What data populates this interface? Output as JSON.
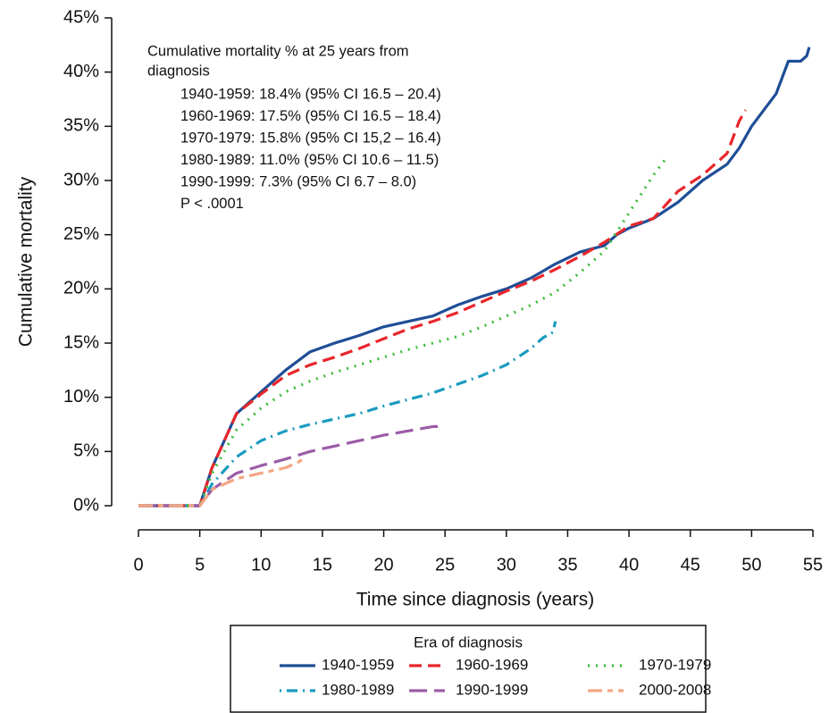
{
  "chart_data": {
    "type": "line",
    "xlabel": "Time since diagnosis (years)",
    "ylabel": "Cumulative mortality",
    "xlim": [
      0,
      55
    ],
    "xticks": [
      0,
      5,
      10,
      15,
      20,
      25,
      30,
      35,
      40,
      45,
      50,
      55
    ],
    "ylim": [
      0,
      45
    ],
    "yticks": [
      {
        "value": 0,
        "label": "0%"
      },
      {
        "value": 5,
        "label": "5%"
      },
      {
        "value": 10,
        "label": "10%"
      },
      {
        "value": 15,
        "label": "15%"
      },
      {
        "value": 20,
        "label": "20%"
      },
      {
        "value": 25,
        "label": "25%"
      },
      {
        "value": 30,
        "label": "30%"
      },
      {
        "value": 35,
        "label": "35%"
      },
      {
        "value": 40,
        "label": "40%"
      },
      {
        "value": 45,
        "label": "45%"
      }
    ],
    "grid": false,
    "annotations": [
      "Cumulative mortality % at 25 years from",
      "diagnosis",
      "1940-1959: 18.4% (95% CI 16.5 – 20.4)",
      "1960-1969: 17.5% (95% CI 16.5 – 18.4)",
      "1970-1979: 15.8% (95% CI 15,2 – 16.4)",
      "1980-1989: 11.0% (95% CI 10.6 – 11.5)",
      "1990-1999:  7.3% (95% CI  6.7 –  8.0)",
      "P < .0001"
    ],
    "legend_title": "Era of diagnosis",
    "legend_position": "bottom",
    "series": [
      {
        "name": "1940-1959",
        "color": "#1f4e96",
        "dash": "solid",
        "x": [
          0,
          5,
          6,
          7,
          8,
          9,
          10,
          12,
          14,
          16,
          18,
          20,
          22,
          24,
          26,
          28,
          30,
          32,
          34,
          36,
          38,
          39,
          40,
          42,
          44,
          46,
          48,
          49,
          50,
          51,
          52,
          53,
          54,
          54.5,
          54.7
        ],
        "values": [
          0,
          0,
          3.5,
          6,
          8.5,
          9.5,
          10.5,
          12.5,
          14.2,
          15,
          15.7,
          16.5,
          17,
          17.5,
          18.5,
          19.3,
          20,
          21,
          22.3,
          23.4,
          24,
          25,
          25.6,
          26.5,
          28,
          30,
          31.5,
          33,
          35,
          36.5,
          38,
          41,
          41,
          41.5,
          42.3
        ]
      },
      {
        "name": "1960-1969",
        "color": "#e8262b",
        "dash": "dashed",
        "x": [
          0,
          5,
          6,
          7,
          8,
          10,
          12,
          14,
          16,
          18,
          20,
          22,
          24,
          26,
          28,
          30,
          32,
          34,
          36,
          38,
          40,
          42,
          44,
          46,
          48,
          49,
          49.5
        ],
        "values": [
          0,
          0,
          3.5,
          6,
          8.5,
          10.3,
          12,
          13,
          13.7,
          14.5,
          15.4,
          16.3,
          17,
          17.8,
          18.8,
          19.8,
          20.7,
          21.8,
          23,
          24.3,
          25.8,
          26.5,
          29,
          30.5,
          32.5,
          35.5,
          36.5
        ]
      },
      {
        "name": "1970-1979",
        "color": "#3dbb3d",
        "dash": "dotted",
        "x": [
          0,
          5,
          6,
          7,
          8,
          10,
          12,
          14,
          16,
          18,
          20,
          22,
          24,
          26,
          28,
          30,
          32,
          34,
          36,
          38,
          40,
          42,
          43
        ],
        "values": [
          0,
          0,
          3,
          5,
          7,
          9,
          10.5,
          11.5,
          12.3,
          13,
          13.7,
          14.4,
          15,
          15.6,
          16.5,
          17.5,
          18.5,
          19.7,
          21.5,
          23.5,
          27,
          30.5,
          32
        ]
      },
      {
        "name": "1980-1989",
        "color": "#1a9bbf",
        "dash": "dashdot",
        "x": [
          0,
          5,
          6,
          8,
          10,
          12,
          14,
          16,
          18,
          20,
          22,
          24,
          26,
          28,
          30,
          32,
          33,
          33.8,
          34
        ],
        "values": [
          0,
          0,
          2,
          4.5,
          6,
          6.9,
          7.5,
          8,
          8.5,
          9.2,
          9.8,
          10.4,
          11.2,
          12,
          13,
          14.5,
          15.5,
          16,
          17
        ]
      },
      {
        "name": "1990-1999",
        "color": "#9b5ca6",
        "dash": "longdash",
        "x": [
          0,
          5,
          6,
          8,
          10,
          12,
          14,
          16,
          18,
          20,
          22,
          24,
          24.5
        ],
        "values": [
          0,
          0,
          1.5,
          3,
          3.7,
          4.3,
          5,
          5.5,
          6,
          6.5,
          6.9,
          7.3,
          7.3
        ]
      },
      {
        "name": "2000-2008",
        "color": "#f4a582",
        "dash": "twodash",
        "x": [
          0,
          5,
          6,
          8,
          10,
          12,
          13,
          13.7
        ],
        "values": [
          0,
          0,
          1.5,
          2.5,
          3,
          3.5,
          4,
          4.5
        ]
      }
    ]
  }
}
